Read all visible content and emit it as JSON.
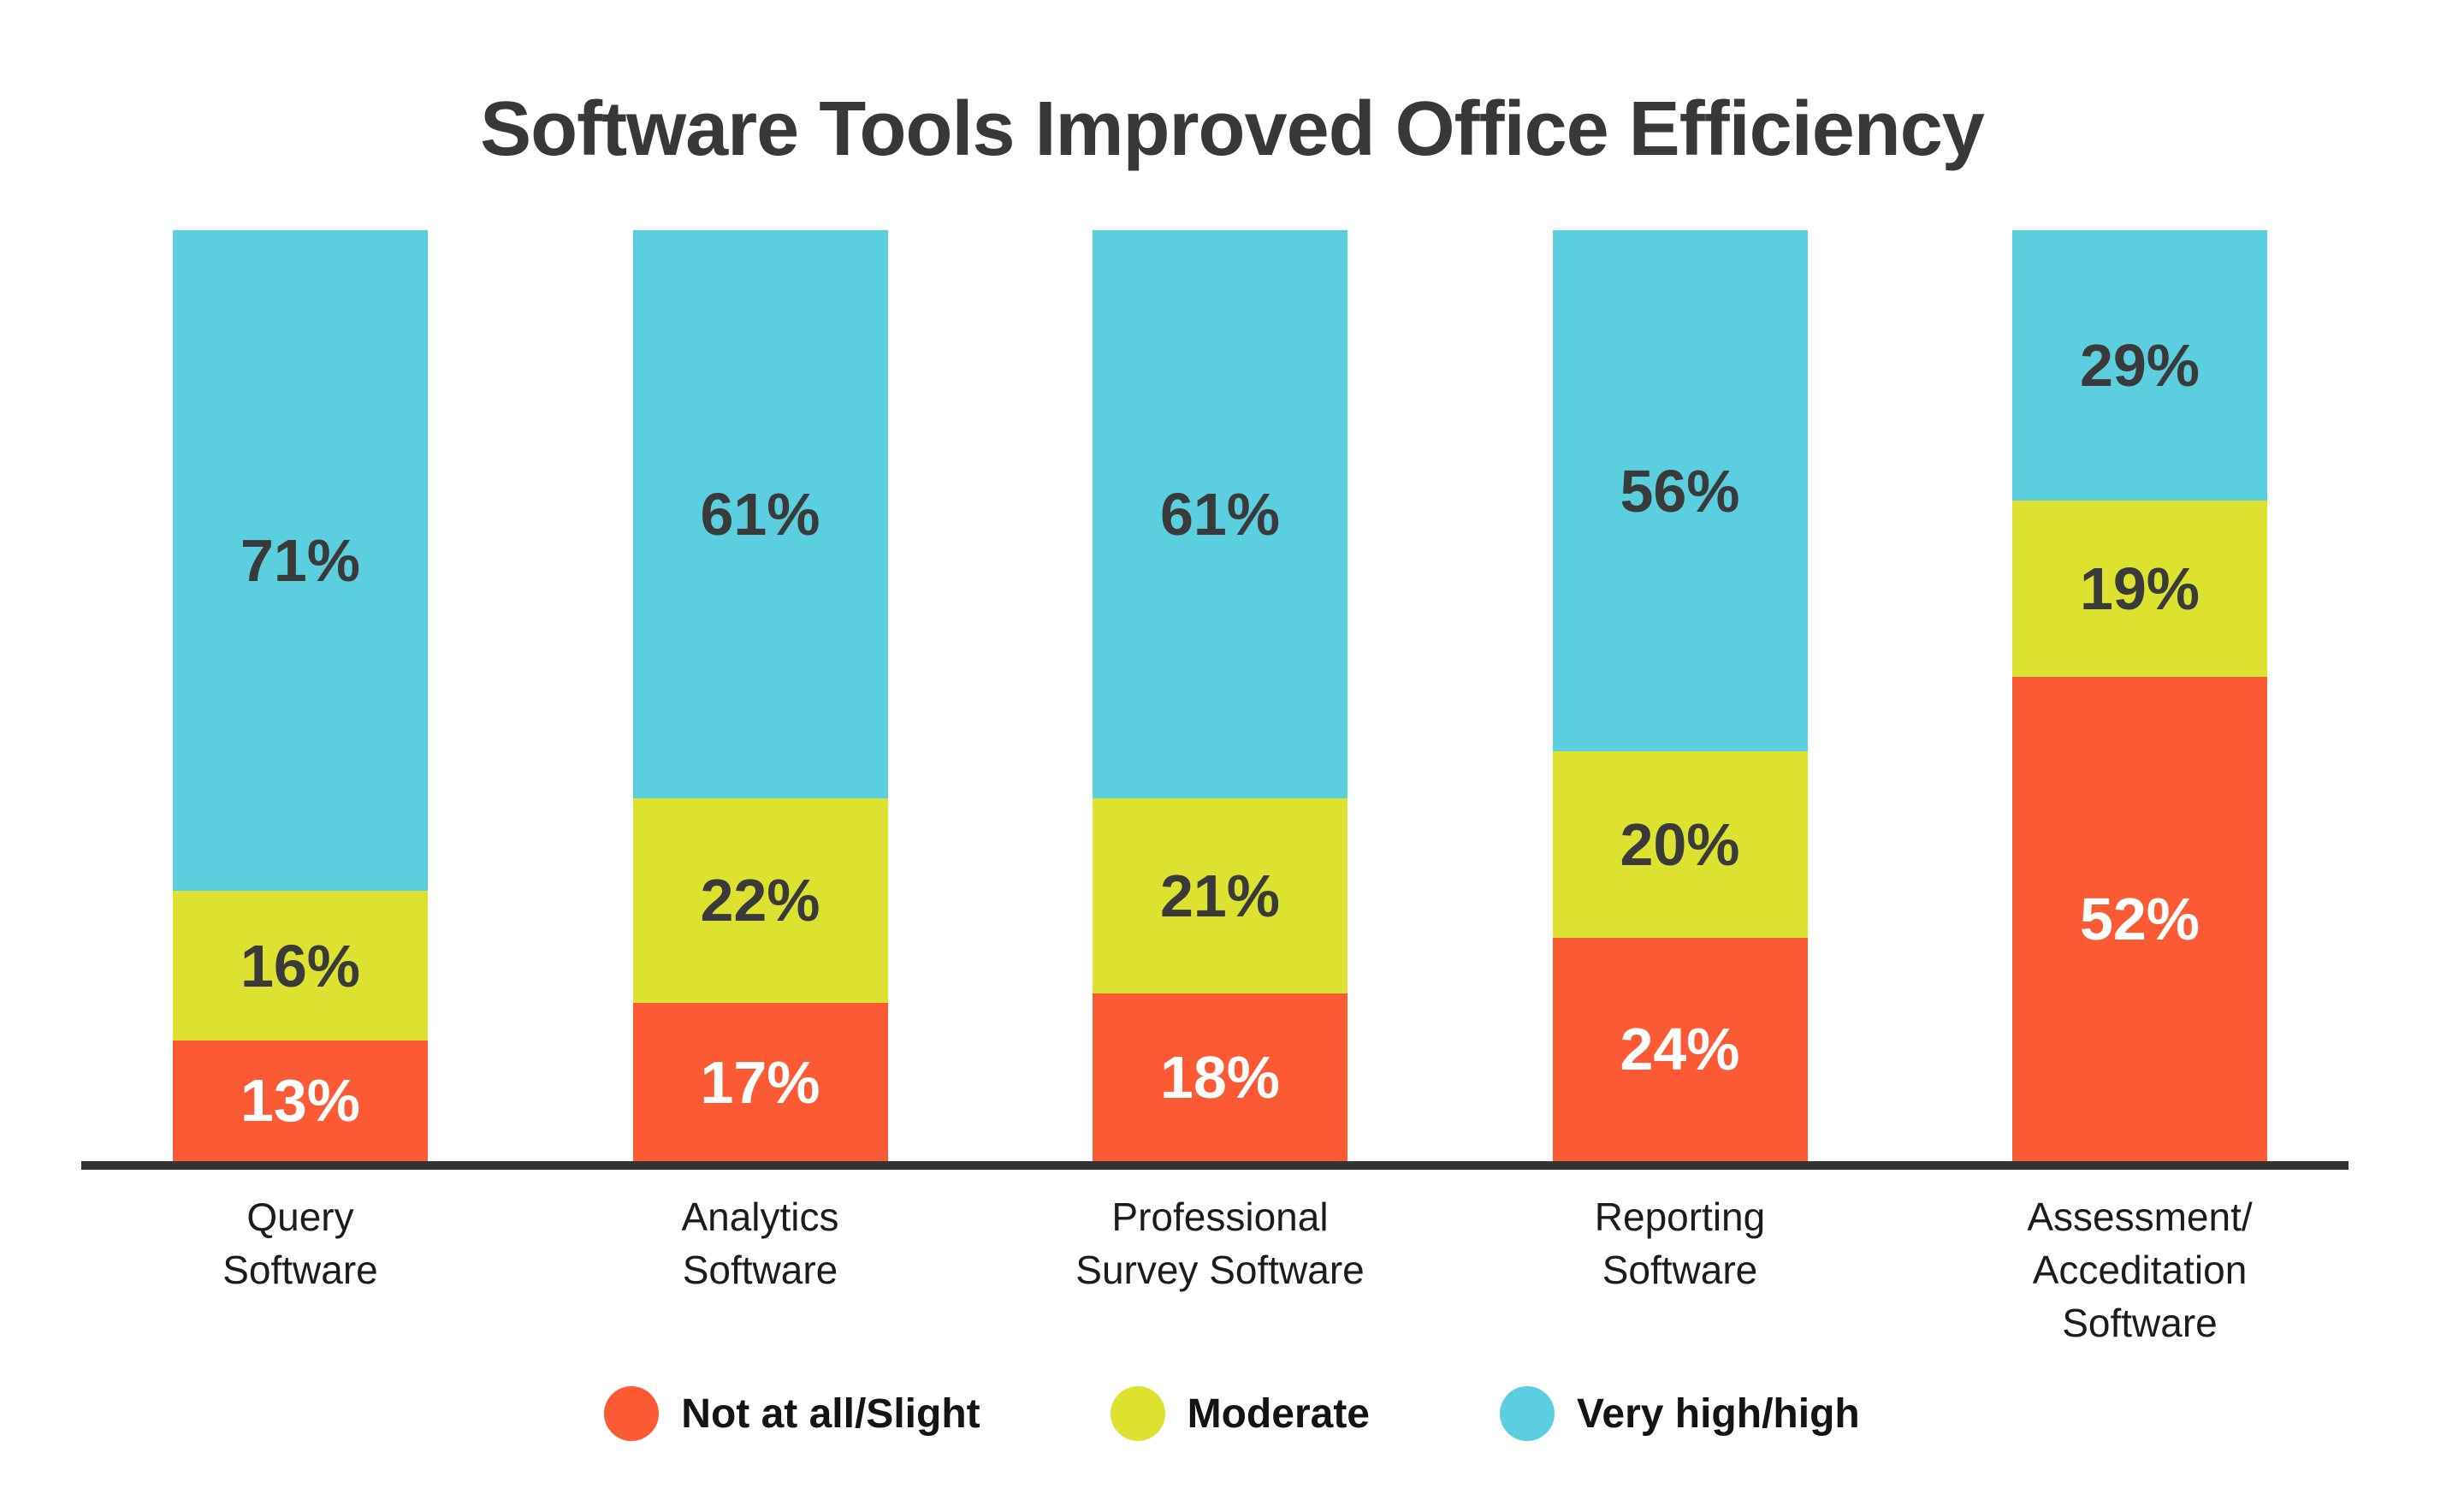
{
  "chart_data": {
    "type": "bar",
    "variant": "stacked-100-percent",
    "title": "Software Tools Improved Office Efficiency",
    "categories": [
      "Query\nSoftware",
      "Analytics\nSoftware",
      "Professional\nSurvey Software",
      "Reporting\nSoftware",
      "Assessment/\nAcceditation\nSoftware"
    ],
    "series": [
      {
        "name": "Not at all/Slight",
        "color": "#FB5A35",
        "label_text_color": "#FFFFFF",
        "values": [
          13,
          17,
          18,
          24,
          52
        ]
      },
      {
        "name": "Moderate",
        "color": "#DDE230",
        "label_text_color": "#3A3A3A",
        "values": [
          16,
          22,
          21,
          20,
          19
        ]
      },
      {
        "name": "Very high/high",
        "color": "#5BCEDF",
        "label_text_color": "#3A3A3A",
        "values": [
          71,
          61,
          61,
          56,
          29
        ]
      }
    ],
    "value_suffix": "%",
    "ylim": [
      0,
      100
    ],
    "grid": false,
    "y_axis_visible": false,
    "legend_position": "bottom",
    "axis_line_color": "#333333",
    "title_color": "#383838",
    "background": "#FFFFFF"
  }
}
